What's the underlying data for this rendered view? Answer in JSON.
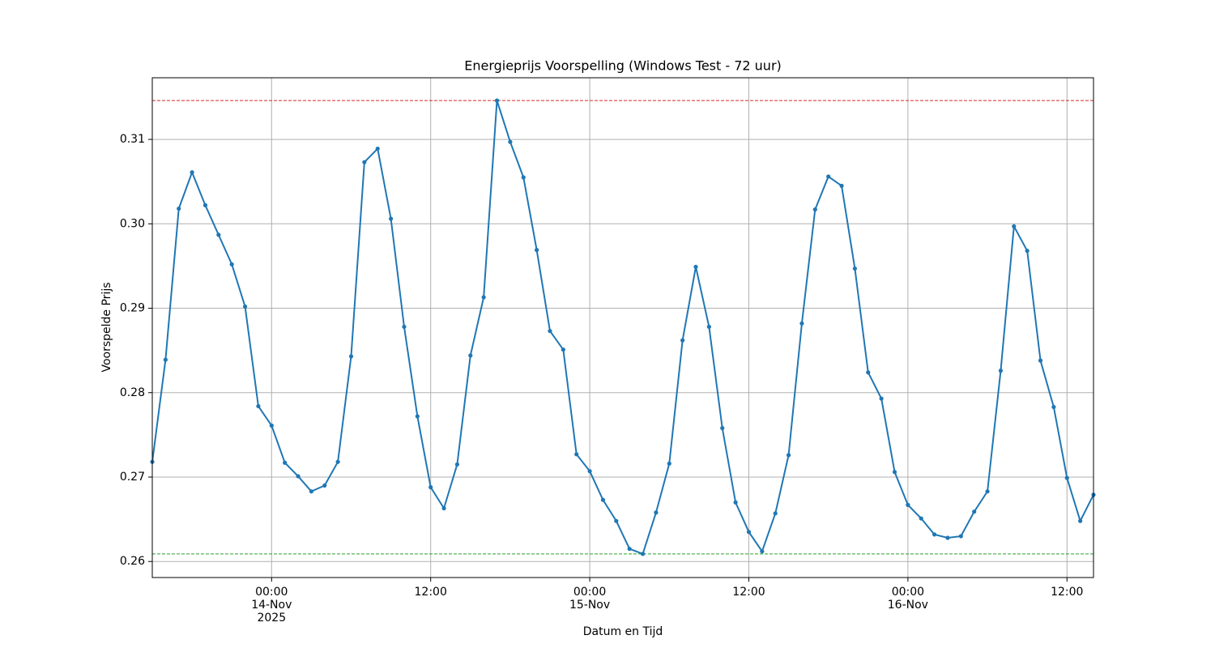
{
  "chart_data": {
    "type": "line",
    "title": "Energieprijs Voorspelling (Windows Test - 72 uur)",
    "xlabel": "Datum en Tijd",
    "ylabel": "Voorspelde Prijs",
    "color": "#1f77b4",
    "grid": true,
    "x": [
      "2025-11-13 15:00",
      "2025-11-13 16:00",
      "2025-11-13 17:00",
      "2025-11-13 18:00",
      "2025-11-13 19:00",
      "2025-11-13 20:00",
      "2025-11-13 21:00",
      "2025-11-13 22:00",
      "2025-11-13 23:00",
      "2025-11-14 00:00",
      "2025-11-14 01:00",
      "2025-11-14 02:00",
      "2025-11-14 03:00",
      "2025-11-14 04:00",
      "2025-11-14 05:00",
      "2025-11-14 06:00",
      "2025-11-14 07:00",
      "2025-11-14 08:00",
      "2025-11-14 09:00",
      "2025-11-14 10:00",
      "2025-11-14 11:00",
      "2025-11-14 12:00",
      "2025-11-14 13:00",
      "2025-11-14 14:00",
      "2025-11-14 15:00",
      "2025-11-14 16:00",
      "2025-11-14 17:00",
      "2025-11-14 18:00",
      "2025-11-14 19:00",
      "2025-11-14 20:00",
      "2025-11-14 21:00",
      "2025-11-14 22:00",
      "2025-11-14 23:00",
      "2025-11-15 00:00",
      "2025-11-15 01:00",
      "2025-11-15 02:00",
      "2025-11-15 03:00",
      "2025-11-15 04:00",
      "2025-11-15 05:00",
      "2025-11-15 06:00",
      "2025-11-15 07:00",
      "2025-11-15 08:00",
      "2025-11-15 09:00",
      "2025-11-15 10:00",
      "2025-11-15 11:00",
      "2025-11-15 12:00",
      "2025-11-15 13:00",
      "2025-11-15 14:00",
      "2025-11-15 15:00",
      "2025-11-15 16:00",
      "2025-11-15 17:00",
      "2025-11-15 18:00",
      "2025-11-15 19:00",
      "2025-11-15 20:00",
      "2025-11-15 21:00",
      "2025-11-15 22:00",
      "2025-11-15 23:00",
      "2025-11-16 00:00",
      "2025-11-16 01:00",
      "2025-11-16 02:00",
      "2025-11-16 03:00",
      "2025-11-16 04:00",
      "2025-11-16 05:00",
      "2025-11-16 06:00",
      "2025-11-16 07:00",
      "2025-11-16 08:00",
      "2025-11-16 09:00",
      "2025-11-16 10:00",
      "2025-11-16 11:00",
      "2025-11-16 12:00",
      "2025-11-16 13:00",
      "2025-11-16 14:00"
    ],
    "values": [
      0.2718,
      0.2839,
      0.3018,
      0.3061,
      0.3022,
      0.2987,
      0.2952,
      0.2902,
      0.2784,
      0.2761,
      0.2717,
      0.2701,
      0.2683,
      0.269,
      0.2718,
      0.2843,
      0.3073,
      0.3089,
      0.3006,
      0.2878,
      0.2772,
      0.2688,
      0.2663,
      0.2715,
      0.2844,
      0.2913,
      0.3146,
      0.3097,
      0.3055,
      0.2969,
      0.2873,
      0.2851,
      0.2727,
      0.2707,
      0.2673,
      0.2648,
      0.2615,
      0.2609,
      0.2658,
      0.2716,
      0.2862,
      0.2949,
      0.2878,
      0.2758,
      0.267,
      0.2635,
      0.2612,
      0.2657,
      0.2726,
      0.2882,
      0.3017,
      0.3056,
      0.3045,
      0.2947,
      0.2824,
      0.2793,
      0.2706,
      0.2667,
      0.2651,
      0.2632,
      0.2628,
      0.263,
      0.2659,
      0.2683,
      0.2826,
      0.2997,
      0.2968,
      0.2838,
      0.2783,
      0.2699,
      0.2648,
      0.2679
    ],
    "hlines": [
      {
        "value": 0.3146,
        "color": "#d62728"
      },
      {
        "value": 0.2609,
        "color": "#2ca02c"
      }
    ],
    "xlim": [
      "2025-11-13 15:00",
      "2025-11-16 14:00"
    ],
    "xticks": [
      {
        "value": "2025-11-14 00:00",
        "label": "00:00\n14-Nov\n2025"
      },
      {
        "value": "2025-11-14 12:00",
        "label": "12:00"
      },
      {
        "value": "2025-11-15 00:00",
        "label": "00:00\n15-Nov"
      },
      {
        "value": "2025-11-15 12:00",
        "label": "12:00"
      },
      {
        "value": "2025-11-16 00:00",
        "label": "00:00\n16-Nov"
      },
      {
        "value": "2025-11-16 12:00",
        "label": "12:00"
      }
    ],
    "ylim": [
      0.2581,
      0.3173
    ],
    "yticks": [
      0.26,
      0.27,
      0.28,
      0.29,
      {
        "value": 0.3,
        "label": "0.30"
      },
      0.31
    ]
  }
}
